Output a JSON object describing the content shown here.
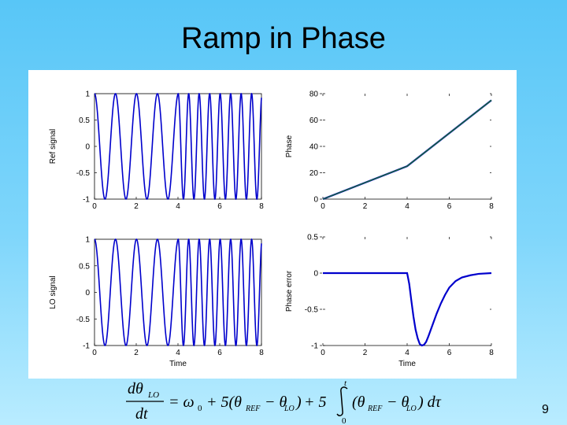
{
  "slide": {
    "title": "Ramp in Phase",
    "page_number": "9"
  },
  "equation": {
    "lhs_num": "dθ",
    "lhs_num_sub": "LO",
    "lhs_den": "dt",
    "rhs_start": "= ω",
    "omega_sub": "0",
    "term1": "+ 5(θ",
    "ref_sub": "REF",
    "minus": "− θ",
    "lo_sub": "LO",
    "term1_close": ")",
    "term2": "+ 5",
    "int_upper": "t",
    "int_lower": "0",
    "integrand_open": "(θ",
    "integrand_minus": "− θ",
    "integrand_close": ") dτ"
  },
  "colors": {
    "primary_curve": "#0000cc",
    "secondary_curve": "#1a7a1a",
    "axis": "#000000"
  },
  "chart_data": [
    {
      "type": "line",
      "panel": "top-left",
      "xlabel": "",
      "ylabel": "Ref signal",
      "xlim": [
        0,
        8
      ],
      "ylim": [
        -1,
        1
      ],
      "xticks": [
        0,
        2,
        4,
        6,
        8
      ],
      "yticks": [
        -1,
        -0.5,
        0,
        0.5,
        1
      ],
      "ytick_labels": [
        "-1",
        "-0.5",
        "0",
        "0.5",
        "1"
      ],
      "grid": false,
      "series": [
        {
          "color": "#0000cc",
          "function": "cos(phase)",
          "phase_segments": [
            [
              0,
              0
            ],
            [
              4,
              25
            ],
            [
              8,
              75
            ]
          ]
        }
      ]
    },
    {
      "type": "line",
      "panel": "top-right",
      "xlabel": "",
      "ylabel": "Phase",
      "xlim": [
        0,
        8
      ],
      "ylim": [
        0,
        80
      ],
      "xticks": [
        0,
        2,
        4,
        6,
        8
      ],
      "yticks": [
        0,
        20,
        40,
        60,
        80
      ],
      "ytick_labels": [
        "0",
        "20",
        "40",
        "60",
        "80"
      ],
      "grid": false,
      "series": [
        {
          "color": "#0000cc",
          "x": [
            0,
            4,
            8
          ],
          "y": [
            0,
            25,
            75
          ]
        },
        {
          "color": "#1a7a1a",
          "x": [
            0,
            4,
            8
          ],
          "y": [
            0,
            25,
            75
          ]
        }
      ]
    },
    {
      "type": "line",
      "panel": "bottom-left",
      "xlabel": "Time",
      "ylabel": "LO signal",
      "xlim": [
        0,
        8
      ],
      "ylim": [
        -1,
        1
      ],
      "xticks": [
        0,
        2,
        4,
        6,
        8
      ],
      "yticks": [
        -1,
        -0.5,
        0,
        0.5,
        1
      ],
      "ytick_labels": [
        "-1",
        "-0.5",
        "0",
        "0.5",
        "1"
      ],
      "grid": false,
      "series": [
        {
          "color": "#0000cc",
          "function": "cos(phase)",
          "phase_segments": [
            [
              0,
              0
            ],
            [
              4,
              25
            ],
            [
              8,
              75
            ]
          ]
        }
      ]
    },
    {
      "type": "line",
      "panel": "bottom-right",
      "xlabel": "Time",
      "ylabel": "Phase error",
      "xlim": [
        0,
        8
      ],
      "ylim": [
        -1,
        0.5
      ],
      "xticks": [
        0,
        2,
        4,
        6,
        8
      ],
      "yticks": [
        -1,
        -0.5,
        0,
        0.5
      ],
      "ytick_labels": [
        "-1",
        "-0.5",
        "0",
        "0.5"
      ],
      "grid": false,
      "series": [
        {
          "color": "#0000cc",
          "x": [
            0,
            4.0,
            4.1,
            4.2,
            4.3,
            4.4,
            4.5,
            4.6,
            4.7,
            4.8,
            4.9,
            5.0,
            5.2,
            5.4,
            5.6,
            5.8,
            6.0,
            6.3,
            6.6,
            7.0,
            7.4,
            8.0
          ],
          "y": [
            0,
            0,
            -0.15,
            -0.38,
            -0.6,
            -0.78,
            -0.9,
            -0.98,
            -1.0,
            -0.99,
            -0.95,
            -0.88,
            -0.72,
            -0.56,
            -0.42,
            -0.3,
            -0.2,
            -0.11,
            -0.06,
            -0.03,
            -0.01,
            0.0
          ]
        }
      ]
    }
  ]
}
